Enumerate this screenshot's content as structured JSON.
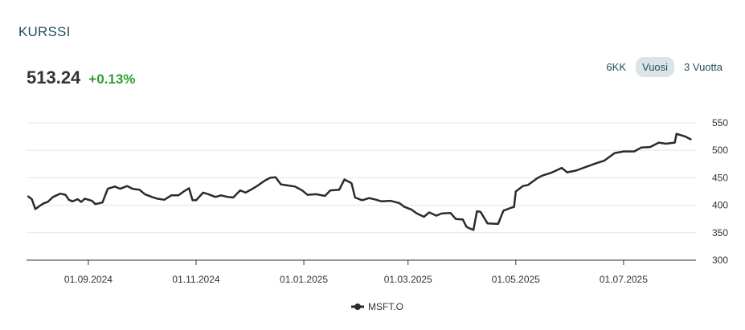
{
  "header": {
    "title": "KURSSI"
  },
  "quote": {
    "price": "513.24",
    "change": "+0.13%"
  },
  "range_tabs": [
    {
      "label": "6KK",
      "active": false
    },
    {
      "label": "Vuosi",
      "active": true
    },
    {
      "label": "3 Vuotta",
      "active": false
    }
  ],
  "colors": {
    "line": "#2b2b2b",
    "positive": "#2e9e2e",
    "accent": "#1f4e5f",
    "grid": "#e6e6e6"
  },
  "chart_data": {
    "type": "line",
    "title": "",
    "xlabel": "",
    "ylabel": "",
    "ylim": [
      300,
      550
    ],
    "y_ticks": [
      300,
      350,
      400,
      450,
      500,
      550
    ],
    "x_ticks": [
      "01.09.2024",
      "01.11.2024",
      "01.01.2025",
      "01.03.2025",
      "01.05.2025",
      "01.07.2025"
    ],
    "x_range": [
      "2024-07-28",
      "2025-08-11"
    ],
    "grid": true,
    "legend_position": "bottom-center",
    "series": [
      {
        "name": "MSFT.O",
        "x": [
          "2024-07-29",
          "2024-07-31",
          "2024-08-02",
          "2024-08-05",
          "2024-08-07",
          "2024-08-09",
          "2024-08-12",
          "2024-08-14",
          "2024-08-16",
          "2024-08-19",
          "2024-08-21",
          "2024-08-23",
          "2024-08-26",
          "2024-08-28",
          "2024-08-30",
          "2024-09-03",
          "2024-09-05",
          "2024-09-09",
          "2024-09-12",
          "2024-09-16",
          "2024-09-19",
          "2024-09-23",
          "2024-09-26",
          "2024-09-30",
          "2024-10-03",
          "2024-10-07",
          "2024-10-10",
          "2024-10-14",
          "2024-10-18",
          "2024-10-22",
          "2024-10-25",
          "2024-10-28",
          "2024-10-30",
          "2024-11-01",
          "2024-11-05",
          "2024-11-08",
          "2024-11-12",
          "2024-11-15",
          "2024-11-19",
          "2024-11-22",
          "2024-11-26",
          "2024-11-29",
          "2024-12-03",
          "2024-12-06",
          "2024-12-10",
          "2024-12-13",
          "2024-12-16",
          "2024-12-19",
          "2024-12-23",
          "2024-12-27",
          "2024-12-31",
          "2025-01-03",
          "2025-01-08",
          "2025-01-13",
          "2025-01-16",
          "2025-01-21",
          "2025-01-24",
          "2025-01-28",
          "2025-01-30",
          "2025-02-03",
          "2025-02-07",
          "2025-02-11",
          "2025-02-14",
          "2025-02-19",
          "2025-02-24",
          "2025-02-27",
          "2025-03-03",
          "2025-03-06",
          "2025-03-10",
          "2025-03-13",
          "2025-03-17",
          "2025-03-20",
          "2025-03-25",
          "2025-03-28",
          "2025-04-01",
          "2025-04-03",
          "2025-04-04",
          "2025-04-07",
          "2025-04-09",
          "2025-04-11",
          "2025-04-15",
          "2025-04-21",
          "2025-04-24",
          "2025-04-28",
          "2025-04-30",
          "2025-05-01",
          "2025-05-05",
          "2025-05-08",
          "2025-05-13",
          "2025-05-16",
          "2025-05-21",
          "2025-05-27",
          "2025-05-30",
          "2025-06-04",
          "2025-06-10",
          "2025-06-16",
          "2025-06-20",
          "2025-06-26",
          "2025-07-01",
          "2025-07-07",
          "2025-07-11",
          "2025-07-16",
          "2025-07-21",
          "2025-07-25",
          "2025-07-30",
          "2025-07-31",
          "2025-08-05",
          "2025-08-08"
        ],
        "y": [
          416,
          411,
          393,
          400,
          404,
          406,
          415,
          418,
          421,
          419,
          410,
          407,
          411,
          406,
          412,
          408,
          402,
          405,
          430,
          434,
          430,
          435,
          430,
          428,
          420,
          415,
          412,
          410,
          418,
          418,
          425,
          431,
          409,
          409,
          423,
          420,
          415,
          418,
          415,
          414,
          427,
          423,
          430,
          436,
          445,
          450,
          451,
          438,
          436,
          434,
          427,
          419,
          420,
          417,
          427,
          428,
          447,
          440,
          414,
          409,
          413,
          410,
          407,
          408,
          404,
          397,
          392,
          385,
          379,
          387,
          381,
          385,
          386,
          375,
          374,
          361,
          359,
          355,
          389,
          388,
          367,
          366,
          390,
          395,
          397,
          425,
          435,
          437,
          449,
          454,
          459,
          468,
          460,
          463,
          470,
          477,
          481,
          495,
          498,
          498,
          505,
          506,
          514,
          512,
          514,
          530,
          525,
          520
        ]
      }
    ]
  }
}
